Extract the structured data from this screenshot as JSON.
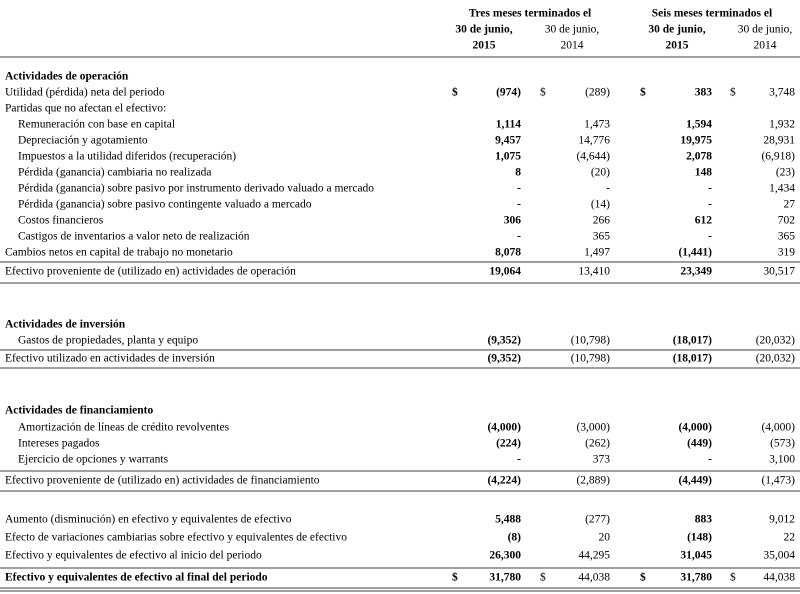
{
  "header": {
    "groups": [
      "Tres meses terminados el",
      "Seis meses terminados el"
    ],
    "columns": [
      {
        "line1": "30 de junio,",
        "line2": "2015"
      },
      {
        "line1": "30 de junio,",
        "line2": "2014"
      },
      {
        "line1": "30 de junio,",
        "line2": "2015"
      },
      {
        "line1": "30 de junio,",
        "line2": "2014"
      }
    ]
  },
  "rows": [
    {
      "label": "Actividades de operación"
    },
    {
      "label": "Utilidad (pérdida) neta del periodo",
      "currency": [
        "$",
        "$",
        "$",
        "$"
      ],
      "values": [
        "(974)",
        "(289)",
        "383",
        "3,748"
      ]
    },
    {
      "label": "Partidas que no afectan el efectivo:"
    },
    {
      "label": "Remuneración con base en capital",
      "values": [
        "1,114",
        "1,473",
        "1,594",
        "1,932"
      ]
    },
    {
      "label": "Depreciación y agotamiento",
      "values": [
        "9,457",
        "14,776",
        "19,975",
        "28,931"
      ]
    },
    {
      "label": "Impuestos a la utilidad diferidos (recuperación)",
      "values": [
        "1,075",
        "(4,644)",
        "2,078",
        "(6,918)"
      ]
    },
    {
      "label": "Pérdida (ganancia) cambiaria no realizada",
      "values": [
        "8",
        "(20)",
        "148",
        "(23)"
      ]
    },
    {
      "label": "Pérdida (ganancia) sobre pasivo por instrumento derivado valuado a mercado",
      "values": [
        "-",
        "-",
        "-",
        "1,434"
      ]
    },
    {
      "label": "Pérdida (ganancia) sobre pasivo contingente valuado a mercado",
      "values": [
        "-",
        "(14)",
        "-",
        "27"
      ]
    },
    {
      "label": "Costos financieros",
      "values": [
        "306",
        "266",
        "612",
        "702"
      ]
    },
    {
      "label": "Castigos de inventarios a valor neto de realización",
      "values": [
        "-",
        "365",
        "-",
        "365"
      ]
    },
    {
      "label": "Cambios netos en capital de trabajo no monetario",
      "values": [
        "8,078",
        "1,497",
        "(1,441)",
        "319"
      ]
    },
    {
      "label": "Efectivo proveniente de (utilizado en) actividades de operación",
      "values": [
        "19,064",
        "13,410",
        "23,349",
        "30,517"
      ]
    },
    {
      "label": "Actividades de inversión"
    },
    {
      "label": "Gastos de propiedades, planta y equipo",
      "values": [
        "(9,352)",
        "(10,798)",
        "(18,017)",
        "(20,032)"
      ]
    },
    {
      "label": "Efectivo utilizado en actividades de inversión",
      "values": [
        "(9,352)",
        "(10,798)",
        "(18,017)",
        "(20,032)"
      ]
    },
    {
      "label": "Actividades de financiamiento"
    },
    {
      "label": "Amortización de líneas de crédito revolventes",
      "values": [
        "(4,000)",
        "(3,000)",
        "(4,000)",
        "(4,000)"
      ]
    },
    {
      "label": "Intereses pagados",
      "values": [
        "(224)",
        "(262)",
        "(449)",
        "(573)"
      ]
    },
    {
      "label": "Ejercicio de opciones y warrants",
      "values": [
        "-",
        "373",
        "-",
        "3,100"
      ]
    },
    {
      "label": "Efectivo proveniente de (utilizado en) actividades de financiamiento",
      "values": [
        "(4,224)",
        "(2,889)",
        "(4,449)",
        "(1,473)"
      ]
    },
    {
      "label": "Aumento (disminución) en efectivo y equivalentes de efectivo",
      "values": [
        "5,488",
        "(277)",
        "883",
        "9,012"
      ]
    },
    {
      "label": "Efecto de variaciones cambiarias sobre efectivo y equivalentes de efectivo",
      "values": [
        "(8)",
        "20",
        "(148)",
        "22"
      ]
    },
    {
      "label": "Efectivo y equivalentes de efectivo al inicio del periodo",
      "values": [
        "26,300",
        "44,295",
        "31,045",
        "35,004"
      ]
    },
    {
      "label": "Efectivo y equivalentes de efectivo al final del periodo",
      "currency": [
        "$",
        "$",
        "$",
        "$"
      ],
      "values": [
        "31,780",
        "44,038",
        "31,780",
        "44,038"
      ]
    }
  ]
}
